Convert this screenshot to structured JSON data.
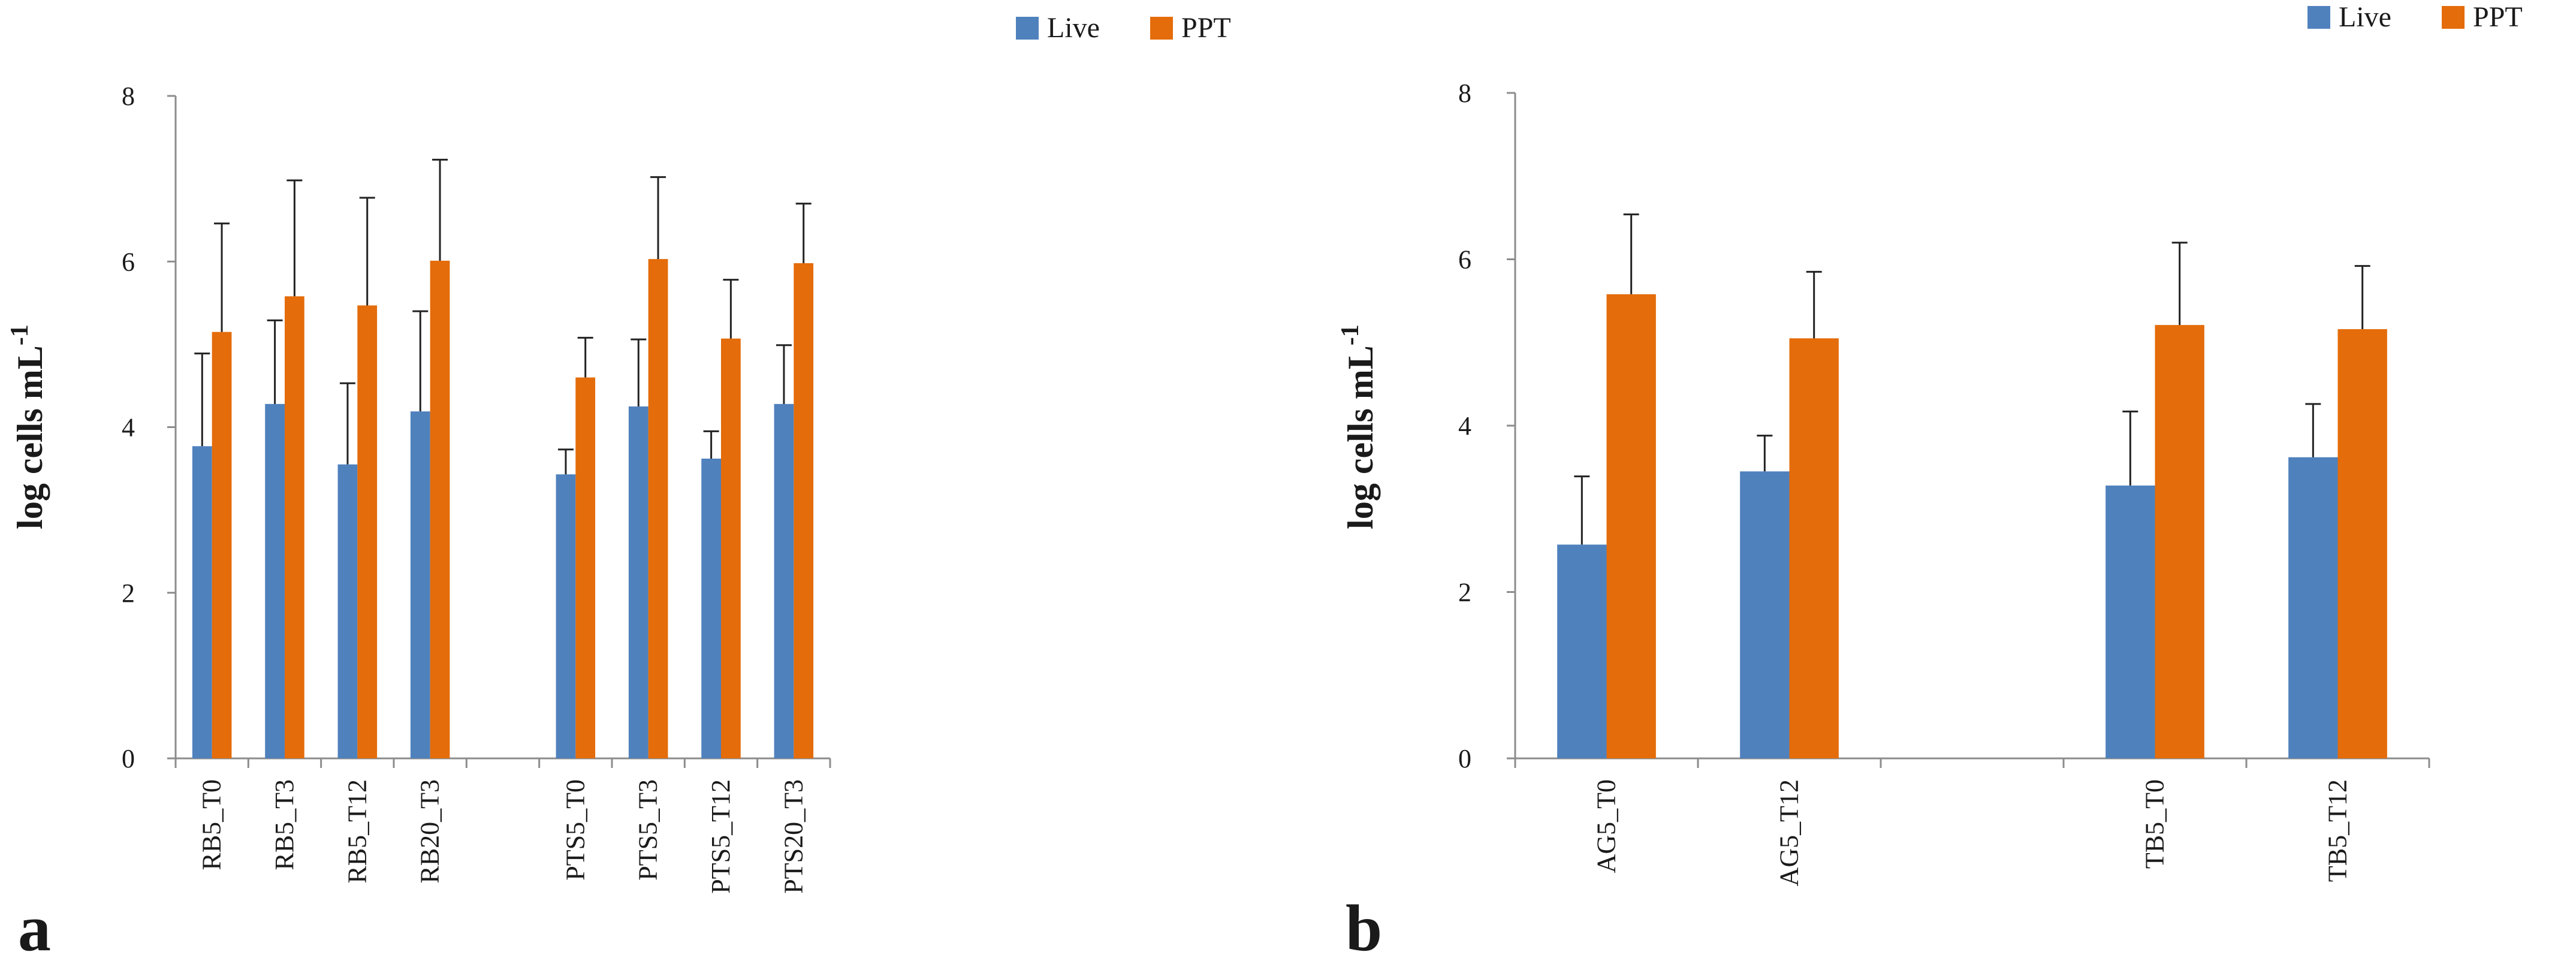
{
  "chart_data": [
    {
      "type": "bar",
      "panel": "a",
      "title": "",
      "xlabel": "",
      "ylabel": "log cells mL",
      "ylabel_sup": "-1",
      "ylim": [
        0,
        8
      ],
      "yticks": [
        "0",
        "2",
        "4",
        "6",
        "8"
      ],
      "legend_position": "top-right",
      "categories": [
        "RB5_T0",
        "RB5_T3",
        "RB5_T12",
        "RB20_T3",
        "",
        "PTS5_T0",
        "PTS5_T3",
        "PTS5_T12",
        "PTS20_T3"
      ],
      "series": [
        {
          "name": "Live",
          "color": "#4f81bd",
          "values": [
            3.77,
            4.28,
            3.55,
            4.19,
            null,
            3.43,
            4.25,
            3.62,
            4.28
          ],
          "errors": [
            1.12,
            1.01,
            0.98,
            1.21,
            null,
            0.3,
            0.81,
            0.33,
            0.71
          ]
        },
        {
          "name": "PPT",
          "color": "#e46c0a",
          "values": [
            5.15,
            5.58,
            5.47,
            6.01,
            null,
            4.6,
            6.03,
            5.07,
            5.98
          ],
          "errors": [
            1.31,
            1.4,
            1.3,
            1.22,
            null,
            0.48,
            0.99,
            0.71,
            0.72
          ]
        }
      ]
    },
    {
      "type": "bar",
      "panel": "b",
      "title": "",
      "xlabel": "",
      "ylabel": "log cells mL",
      "ylabel_sup": "-1",
      "ylim": [
        0,
        8
      ],
      "yticks": [
        "0",
        "2",
        "4",
        "6",
        "8"
      ],
      "legend_position": "top-right",
      "categories": [
        "AG5_T0",
        "AG5_T12",
        "",
        "TB5_T0",
        "TB5_T12"
      ],
      "series": [
        {
          "name": "Live",
          "color": "#4f81bd",
          "values": [
            2.57,
            3.45,
            null,
            3.28,
            3.62
          ],
          "errors": [
            0.82,
            0.43,
            null,
            0.89,
            0.64
          ]
        },
        {
          "name": "PPT",
          "color": "#e46c0a",
          "values": [
            5.58,
            5.05,
            null,
            5.21,
            5.16
          ],
          "errors": [
            0.96,
            0.8,
            null,
            0.99,
            0.76
          ]
        }
      ]
    }
  ]
}
